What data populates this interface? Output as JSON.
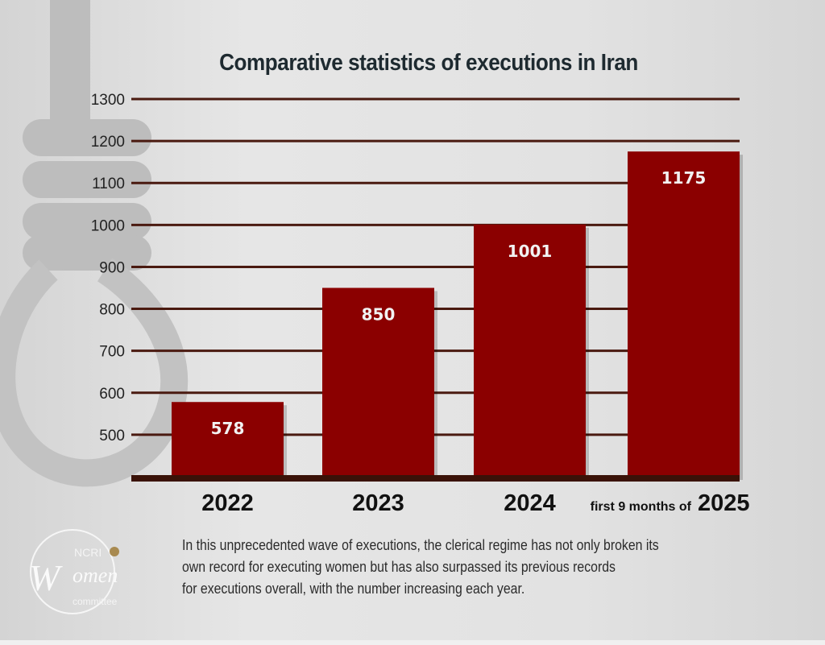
{
  "chart_data": {
    "type": "bar",
    "title": "Comparative statistics of executions in Iran",
    "categories": [
      "2022",
      "2023",
      "2024",
      "2025"
    ],
    "category_notes": [
      "",
      "",
      "",
      "first 9 months of"
    ],
    "values": [
      578,
      850,
      1001,
      1175
    ],
    "data_labels": [
      "578",
      "850",
      "1001",
      "1175"
    ],
    "yticks": [
      500,
      600,
      700,
      800,
      900,
      1000,
      1100,
      1200,
      1300
    ],
    "ylim": [
      400,
      1300
    ],
    "xlabel": "",
    "ylabel": "",
    "grid": true,
    "bar_color": "#8b0000",
    "grid_color": "#4a1a10"
  },
  "caption": [
    "In this unprecedented wave of executions, the clerical regime has not only broken its",
    "own record for executing women but has also surpassed its previous records",
    "for executions overall, with the number increasing each year."
  ],
  "logo": {
    "text": "NCRI Women committee"
  }
}
